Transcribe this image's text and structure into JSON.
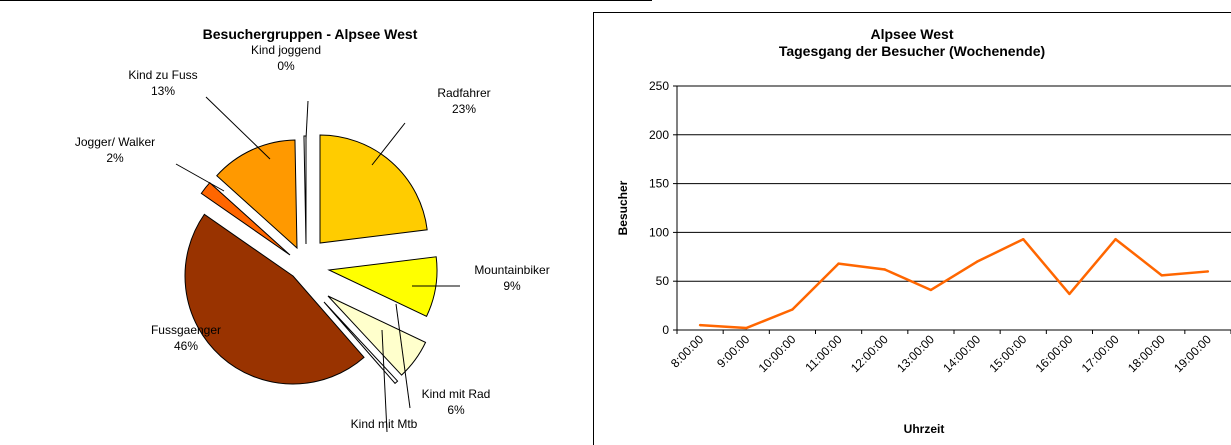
{
  "chart_data": [
    {
      "type": "pie",
      "title": "Besuchergruppen - Alpsee West",
      "slices": [
        {
          "name": "Radfahrer",
          "label": "Radfahrer",
          "pct_label": "23%",
          "value": 23,
          "color": "#ffcc00"
        },
        {
          "name": "Mountainbiker",
          "label": "Mountainbiker",
          "pct_label": "9%",
          "value": 9,
          "color": "#ffff00"
        },
        {
          "name": "Kind mit Rad",
          "label": "Kind mit Rad",
          "pct_label": "6%",
          "value": 6,
          "color": "#ffffcc"
        },
        {
          "name": "Kind mit Mtb",
          "label": "Kind mit Mtb",
          "pct_label": "",
          "value": 0.5,
          "color": "#ffffff"
        },
        {
          "name": "Fussgaenger",
          "label": "Fussgaenger",
          "pct_label": "46%",
          "value": 46,
          "color": "#993300"
        },
        {
          "name": "Jogger/ Walker",
          "label": "Jogger/ Walker",
          "pct_label": "2%",
          "value": 2,
          "color": "#ff6600"
        },
        {
          "name": "Kind zu Fuss",
          "label": "Kind zu Fuss",
          "pct_label": "13%",
          "value": 13,
          "color": "#ff9900"
        },
        {
          "name": "Kind joggend",
          "label": "Kind joggend",
          "pct_label": "0%",
          "value": 0.3,
          "color": "#ffffff"
        }
      ]
    },
    {
      "type": "line",
      "title_line1": "Alpsee West",
      "title_line2": "Tagesgang der Besucher (Wochenende)",
      "xlabel": "Uhrzeit",
      "ylabel": "Besucher",
      "ylim": [
        0,
        250
      ],
      "yticks": [
        0,
        50,
        100,
        150,
        200,
        250
      ],
      "xticks": [
        "8:00:00",
        "9:00:00",
        "10:00:00",
        "11:00:00",
        "12:00:00",
        "13:00:00",
        "14:00:00",
        "15:00:00",
        "16:00:00",
        "17:00:00",
        "18:00:00",
        "19:00:00"
      ],
      "series": [
        {
          "color": "#ff6600",
          "values": [
            5,
            2,
            21,
            68,
            62,
            41,
            70,
            93,
            37,
            93,
            56,
            60
          ]
        }
      ],
      "grid": true
    }
  ]
}
